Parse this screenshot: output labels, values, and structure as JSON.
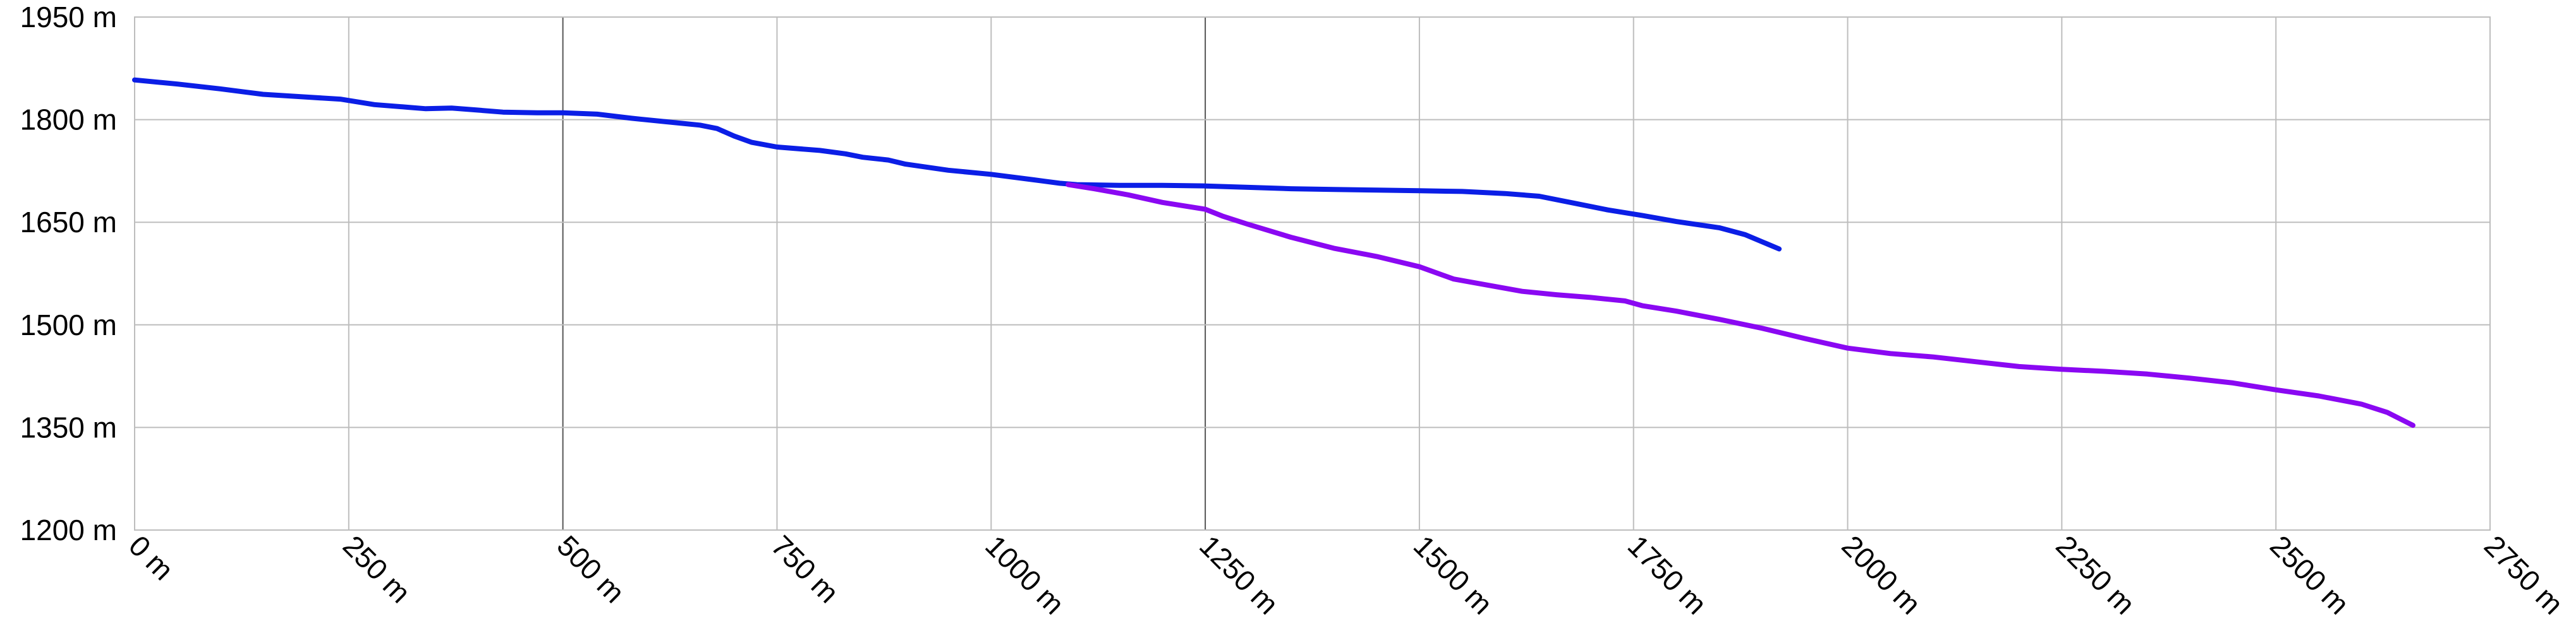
{
  "chart_data": {
    "type": "line",
    "title": "",
    "xlabel": "",
    "ylabel": "",
    "xlim": [
      0,
      2750
    ],
    "ylim": [
      1200,
      1950
    ],
    "x_ticks": [
      0,
      250,
      500,
      750,
      1000,
      1250,
      1500,
      1750,
      2000,
      2250,
      2500,
      2750
    ],
    "y_ticks": [
      1200,
      1350,
      1500,
      1650,
      1800,
      1950
    ],
    "x_tick_labels": [
      "0 m",
      "250 m",
      "500 m",
      "750 m",
      "1000 m",
      "1250 m",
      "1500 m",
      "1750 m",
      "2000 m",
      "2250 m",
      "2500 m",
      "2750 m"
    ],
    "y_tick_labels": [
      "1200 m",
      "1350 m",
      "1500 m",
      "1650 m",
      "1800 m",
      "1950 m"
    ],
    "grid": true,
    "legend": "none",
    "series": [
      {
        "color": "#0b1ee6",
        "x": [
          0,
          50,
          100,
          150,
          200,
          240,
          280,
          320,
          340,
          370,
          400,
          430,
          470,
          500,
          540,
          580,
          620,
          660,
          680,
          700,
          720,
          750,
          800,
          830,
          850,
          880,
          900,
          950,
          1000,
          1050,
          1080,
          1100,
          1150,
          1200,
          1250,
          1300,
          1350,
          1400,
          1450,
          1500,
          1550,
          1600,
          1640,
          1680,
          1720,
          1760,
          1800,
          1850,
          1880,
          1920
        ],
        "y": [
          1858,
          1852,
          1845,
          1837,
          1833,
          1830,
          1822,
          1818,
          1816,
          1817,
          1814,
          1811,
          1810,
          1810,
          1808,
          1802,
          1797,
          1792,
          1787,
          1776,
          1767,
          1760,
          1755,
          1750,
          1745,
          1741,
          1735,
          1726,
          1720,
          1712,
          1707,
          1705,
          1704,
          1704,
          1703,
          1701,
          1699,
          1698,
          1697,
          1696,
          1695,
          1692,
          1688,
          1678,
          1668,
          1660,
          1651,
          1642,
          1632,
          1611
        ]
      },
      {
        "color": "#8a08f2",
        "x": [
          1090,
          1120,
          1160,
          1200,
          1250,
          1270,
          1300,
          1350,
          1400,
          1450,
          1500,
          1540,
          1580,
          1620,
          1660,
          1700,
          1740,
          1760,
          1800,
          1850,
          1900,
          1950,
          2000,
          2050,
          2100,
          2150,
          2200,
          2250,
          2300,
          2350,
          2400,
          2450,
          2500,
          2550,
          2600,
          2630,
          2660
        ],
        "y": [
          1705,
          1699,
          1690,
          1679,
          1669,
          1659,
          1647,
          1628,
          1612,
          1600,
          1585,
          1567,
          1558,
          1549,
          1544,
          1540,
          1535,
          1528,
          1520,
          1508,
          1495,
          1480,
          1466,
          1458,
          1453,
          1446,
          1439,
          1435,
          1432,
          1428,
          1422,
          1415,
          1405,
          1396,
          1384,
          1372,
          1353
        ]
      }
    ]
  }
}
